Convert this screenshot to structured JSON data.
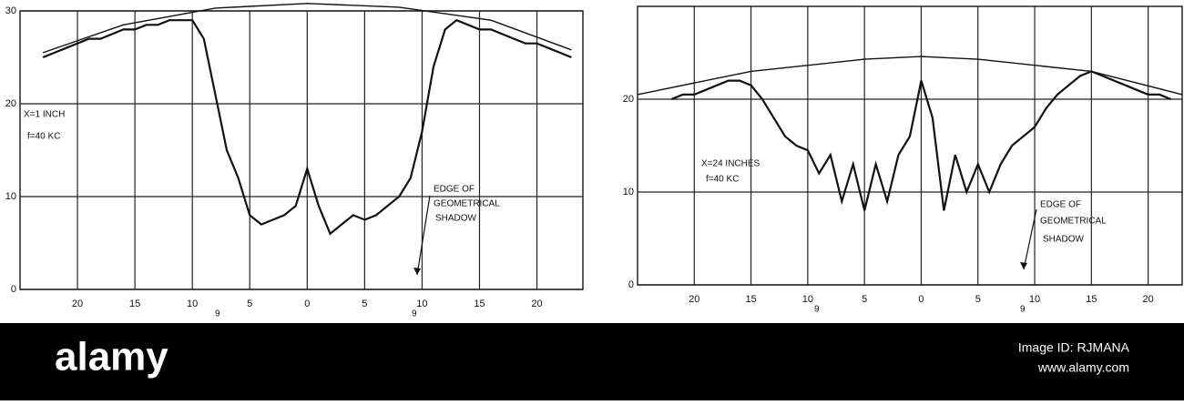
{
  "chart_data": [
    {
      "type": "line",
      "xlim": [
        -25,
        24
      ],
      "ylim": [
        0,
        30
      ],
      "xticks": [
        {
          "value": -20,
          "label": "20"
        },
        {
          "value": -15,
          "label": "15"
        },
        {
          "value": -10,
          "label": "10"
        },
        {
          "value": -5,
          "label": "5"
        },
        0,
        5,
        10,
        15,
        20
      ],
      "yticks": [
        0,
        10,
        20,
        30
      ],
      "grid": true,
      "series": [
        {
          "color": "#111111",
          "x": [
            -23,
            -22,
            -21,
            -20,
            -19,
            -18,
            -17,
            -16,
            -15,
            -14,
            -13,
            -12,
            -11,
            -10,
            -9,
            -8,
            -7,
            -6,
            -5,
            -4,
            -3,
            -2,
            -1,
            0,
            1,
            2,
            3,
            4,
            5,
            6,
            7,
            8,
            9,
            10,
            11,
            12,
            13,
            14,
            15,
            16,
            17,
            18,
            19,
            20,
            21,
            22,
            23
          ],
          "values": [
            25,
            25.5,
            26,
            26.5,
            27,
            27,
            27.5,
            28,
            28,
            28.5,
            28.5,
            29,
            29,
            29,
            27,
            21,
            15,
            12,
            8,
            7,
            7.5,
            8,
            9,
            13,
            9,
            6,
            7,
            8,
            7.5,
            8,
            9,
            10,
            12,
            17,
            24,
            28,
            29,
            28.5,
            28,
            28,
            27.5,
            27,
            26.5,
            26.5,
            26,
            25.5,
            25
          ]
        },
        {
          "color": "#111111",
          "x": [
            -23,
            -16,
            -8,
            0,
            8,
            16,
            23
          ],
          "values": [
            25.5,
            28.5,
            30.3,
            30.8,
            30.4,
            29,
            25.8
          ]
        }
      ],
      "annotations": [
        "X=1 INCH",
        "f=40 KC",
        "EDGE OF",
        "GEOMETRICAL",
        "SHADOW",
        "9",
        "9"
      ]
    },
    {
      "type": "line",
      "xlim": [
        -25,
        23
      ],
      "ylim": [
        0,
        30
      ],
      "xticks": [
        {
          "value": -20,
          "label": "20"
        },
        {
          "value": -15,
          "label": "15"
        },
        {
          "value": -10,
          "label": "10"
        },
        {
          "value": -5,
          "label": "5"
        },
        0,
        5,
        10,
        15,
        20
      ],
      "yticks": [
        0,
        10,
        20
      ],
      "grid": true,
      "series": [
        {
          "color": "#111111",
          "x": [
            -22,
            -21,
            -20,
            -19,
            -18,
            -17,
            -16,
            -15,
            -14,
            -13,
            -12,
            -11,
            -10,
            -9,
            -8,
            -7,
            -6,
            -5,
            -4,
            -3,
            -2,
            -1,
            0,
            1,
            2,
            3,
            4,
            5,
            6,
            7,
            8,
            9,
            10,
            11,
            12,
            13,
            14,
            15,
            16,
            17,
            18,
            19,
            20,
            21,
            22
          ],
          "values": [
            20,
            20.5,
            20.5,
            21,
            21.5,
            22,
            22,
            21.5,
            20,
            18,
            16,
            15,
            14.5,
            12,
            14,
            9,
            13,
            8,
            13,
            9,
            14,
            16,
            22,
            18,
            8,
            14,
            10,
            13,
            10,
            13,
            15,
            16,
            17,
            19,
            20.5,
            21.5,
            22.5,
            23,
            22.5,
            22,
            21.5,
            21,
            20.5,
            20.5,
            20
          ]
        },
        {
          "color": "#111111",
          "x": [
            -25,
            -15,
            -5,
            0,
            5,
            15,
            23
          ],
          "values": [
            20.5,
            23,
            24.3,
            24.6,
            24.3,
            23,
            20.5
          ]
        }
      ],
      "annotations": [
        "X=24 INCHES",
        "f=40 KC",
        "EDGE OF",
        "GEOMETRICAL",
        "SHADOW",
        "9",
        "9"
      ]
    }
  ],
  "footer": {
    "logo": "alamy",
    "image_id": "Image ID: RJMANA",
    "url": "www.alamy.com"
  }
}
